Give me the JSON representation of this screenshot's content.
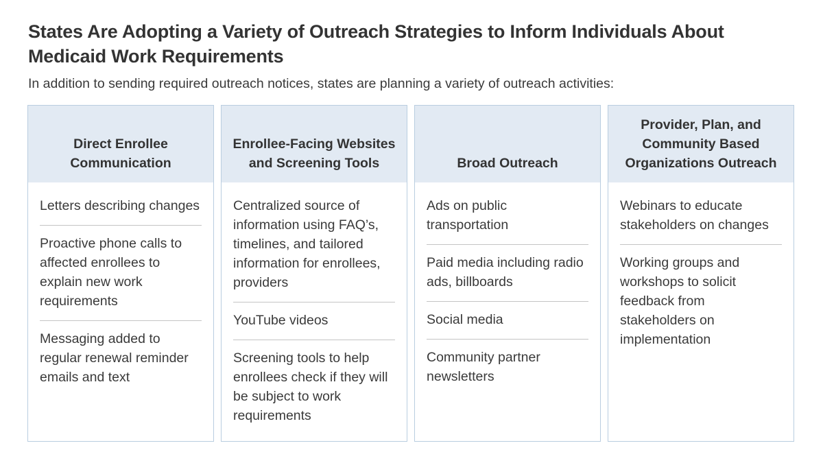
{
  "title": "States Are Adopting a Variety of Outreach Strategies to Inform Individuals About Medicaid Work Requirements",
  "subtitle": "In addition to sending required outreach notices, states are planning a variety of outreach activities:",
  "colors": {
    "header_bg": "#e2eaf3",
    "border": "#b9cde0",
    "divider": "#c4c4c4",
    "text": "#333333"
  },
  "columns": [
    {
      "heading": "Direct Enrollee Communication",
      "items": [
        "Letters describing changes",
        "Proactive phone calls to affected enrollees to explain new work requirements",
        "Messaging added to regular renewal reminder emails and text"
      ]
    },
    {
      "heading": "Enrollee-Facing Websites and Screening Tools",
      "items": [
        "Centralized source of information using FAQ’s, timelines, and tailored information for enrollees, providers",
        "YouTube videos",
        "Screening tools to help enrollees check if they will be subject to work requirements"
      ]
    },
    {
      "heading": "Broad Outreach",
      "items": [
        "Ads on public transportation",
        "Paid media including radio ads, billboards",
        "Social media",
        "Community partner newsletters"
      ]
    },
    {
      "heading": "Provider, Plan, and Community Based Organizations Outreach",
      "items": [
        "Webinars to educate stakeholders on changes",
        "Working groups and workshops to solicit feedback from stakeholders on implementation"
      ]
    }
  ]
}
